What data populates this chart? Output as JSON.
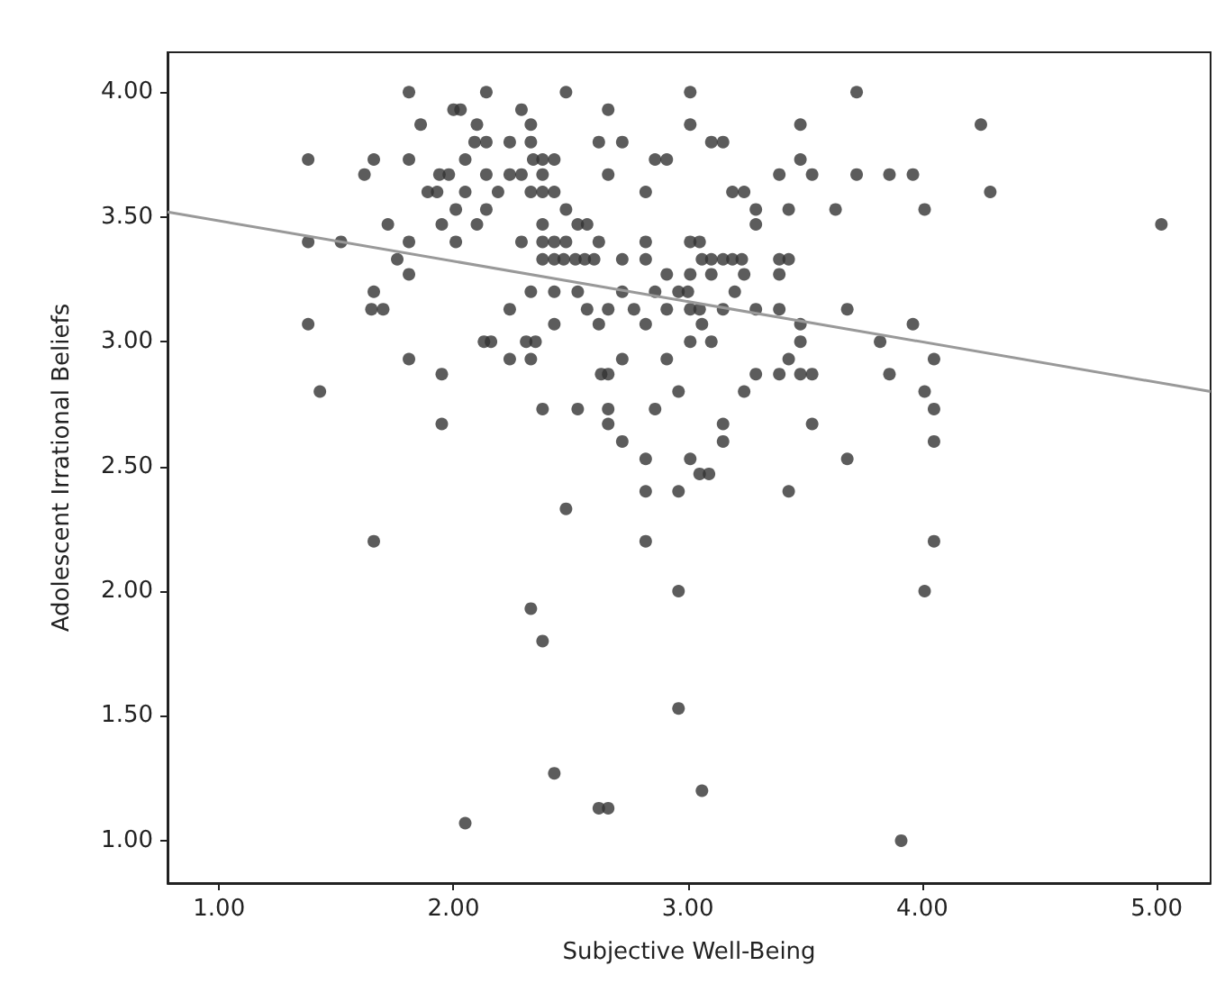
{
  "chart_data": {
    "type": "scatter",
    "xlabel": "Subjective Well-Being",
    "ylabel": "Adolescent Irrational Beliefs",
    "xlim": [
      0.78,
      5.23
    ],
    "ylim": [
      0.83,
      4.16
    ],
    "xticks": [
      {
        "value": 1,
        "label": "1.00"
      },
      {
        "value": 2,
        "label": "2.00"
      },
      {
        "value": 3,
        "label": "3.00"
      },
      {
        "value": 4,
        "label": "4.00"
      },
      {
        "value": 5,
        "label": "5.00"
      }
    ],
    "yticks": [
      {
        "value": 1,
        "label": "1.00"
      },
      {
        "value": 1.5,
        "label": "1.50"
      },
      {
        "value": 2,
        "label": "2.00"
      },
      {
        "value": 2.5,
        "label": "2.50"
      },
      {
        "value": 3,
        "label": "3.00"
      },
      {
        "value": 3.5,
        "label": "3.50"
      },
      {
        "value": 4,
        "label": "4.00"
      }
    ],
    "grid": false,
    "marker": "circle",
    "series": [
      {
        "color": "#333333",
        "x": [
          1.81,
          2.14,
          2.48,
          3.01,
          3.72,
          2.0,
          2.03,
          2.29,
          2.66,
          1.86,
          2.1,
          2.33,
          3.01,
          3.48,
          4.25,
          2.09,
          2.14,
          2.24,
          2.33,
          2.62,
          2.72,
          3.1,
          3.15,
          1.38,
          1.66,
          1.81,
          2.05,
          2.34,
          2.38,
          2.43,
          2.86,
          2.91,
          3.48,
          1.62,
          1.94,
          1.98,
          2.14,
          2.24,
          2.29,
          2.38,
          2.66,
          3.39,
          3.53,
          3.72,
          3.86,
          3.96,
          1.89,
          1.93,
          2.05,
          2.19,
          2.33,
          2.38,
          2.43,
          2.82,
          3.19,
          3.24,
          4.29,
          2.01,
          2.14,
          2.48,
          3.29,
          3.43,
          3.63,
          4.01,
          1.72,
          1.95,
          2.1,
          2.38,
          2.53,
          2.57,
          3.29,
          5.02,
          1.38,
          1.52,
          1.81,
          2.01,
          2.29,
          2.38,
          2.43,
          2.48,
          2.62,
          2.82,
          3.01,
          3.05,
          1.76,
          2.38,
          2.43,
          2.47,
          2.52,
          2.56,
          2.6,
          2.72,
          2.82,
          3.06,
          3.1,
          3.15,
          3.19,
          3.23,
          3.39,
          3.43,
          1.81,
          2.91,
          3.01,
          3.1,
          3.24,
          3.39,
          1.66,
          2.33,
          2.43,
          2.53,
          2.72,
          2.86,
          2.96,
          3.0,
          3.2,
          1.65,
          1.7,
          2.24,
          2.57,
          2.66,
          2.77,
          2.91,
          3.01,
          3.05,
          3.15,
          3.29,
          3.39,
          3.68,
          1.38,
          2.43,
          2.62,
          2.82,
          3.06,
          3.48,
          3.96,
          2.13,
          2.16,
          2.31,
          2.35,
          3.01,
          3.1,
          3.48,
          3.82,
          1.81,
          2.24,
          2.33,
          2.72,
          2.91,
          3.43,
          4.05,
          1.95,
          2.63,
          2.66,
          3.29,
          3.39,
          3.48,
          3.53,
          3.86,
          1.43,
          2.96,
          3.24,
          4.01,
          2.38,
          2.53,
          2.66,
          2.86,
          4.05,
          1.95,
          2.66,
          3.15,
          3.53,
          2.72,
          3.15,
          4.05,
          2.82,
          3.01,
          3.68,
          3.05,
          3.09,
          2.82,
          2.96,
          3.43,
          2.48,
          1.66,
          2.82,
          4.05,
          2.96,
          4.01,
          2.33,
          2.38,
          2.96,
          2.43,
          3.06,
          2.62,
          2.66,
          2.05,
          3.91
        ],
        "values": [
          4.0,
          4.0,
          4.0,
          4.0,
          4.0,
          3.93,
          3.93,
          3.93,
          3.93,
          3.87,
          3.87,
          3.87,
          3.87,
          3.87,
          3.87,
          3.8,
          3.8,
          3.8,
          3.8,
          3.8,
          3.8,
          3.8,
          3.8,
          3.73,
          3.73,
          3.73,
          3.73,
          3.73,
          3.73,
          3.73,
          3.73,
          3.73,
          3.73,
          3.67,
          3.67,
          3.67,
          3.67,
          3.67,
          3.67,
          3.67,
          3.67,
          3.67,
          3.67,
          3.67,
          3.67,
          3.67,
          3.6,
          3.6,
          3.6,
          3.6,
          3.6,
          3.6,
          3.6,
          3.6,
          3.6,
          3.6,
          3.6,
          3.53,
          3.53,
          3.53,
          3.53,
          3.53,
          3.53,
          3.53,
          3.47,
          3.47,
          3.47,
          3.47,
          3.47,
          3.47,
          3.47,
          3.47,
          3.4,
          3.4,
          3.4,
          3.4,
          3.4,
          3.4,
          3.4,
          3.4,
          3.4,
          3.4,
          3.4,
          3.4,
          3.33,
          3.33,
          3.33,
          3.33,
          3.33,
          3.33,
          3.33,
          3.33,
          3.33,
          3.33,
          3.33,
          3.33,
          3.33,
          3.33,
          3.33,
          3.33,
          3.27,
          3.27,
          3.27,
          3.27,
          3.27,
          3.27,
          3.2,
          3.2,
          3.2,
          3.2,
          3.2,
          3.2,
          3.2,
          3.2,
          3.2,
          3.13,
          3.13,
          3.13,
          3.13,
          3.13,
          3.13,
          3.13,
          3.13,
          3.13,
          3.13,
          3.13,
          3.13,
          3.13,
          3.07,
          3.07,
          3.07,
          3.07,
          3.07,
          3.07,
          3.07,
          3.0,
          3.0,
          3.0,
          3.0,
          3.0,
          3.0,
          3.0,
          3.0,
          2.93,
          2.93,
          2.93,
          2.93,
          2.93,
          2.93,
          2.93,
          2.87,
          2.87,
          2.87,
          2.87,
          2.87,
          2.87,
          2.87,
          2.87,
          2.8,
          2.8,
          2.8,
          2.8,
          2.73,
          2.73,
          2.73,
          2.73,
          2.73,
          2.67,
          2.67,
          2.67,
          2.67,
          2.6,
          2.6,
          2.6,
          2.53,
          2.53,
          2.53,
          2.47,
          2.47,
          2.4,
          2.4,
          2.4,
          2.33,
          2.2,
          2.2,
          2.2,
          2.0,
          2.0,
          1.93,
          1.8,
          1.53,
          1.27,
          1.2,
          1.13,
          1.13,
          1.07,
          1.0
        ]
      },
      {
        "type": "line",
        "color": "#999999",
        "marker": "none",
        "line_style": "solid",
        "x": [
          0.78,
          5.23
        ],
        "values": [
          3.52,
          2.8
        ]
      }
    ]
  }
}
